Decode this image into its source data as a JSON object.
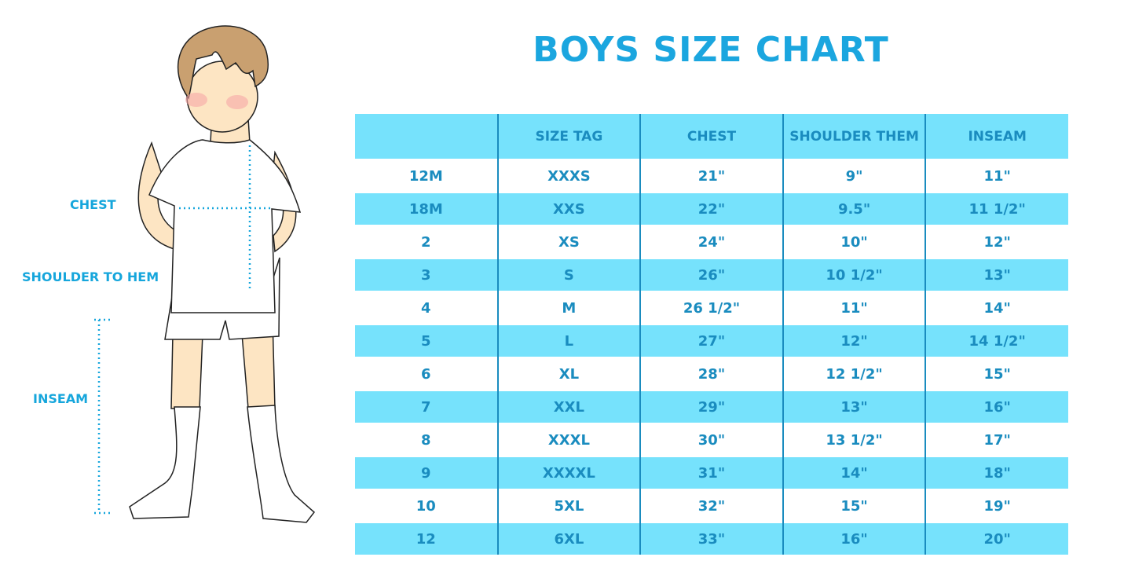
{
  "title": "BOYS SIZE CHART",
  "diagram_labels": {
    "chest": "CHEST",
    "shoulder_to_hem": "SHOULDER TO HEM",
    "inseam": "INSEAM"
  },
  "table": {
    "headers": [
      "",
      "SIZE TAG",
      "CHEST",
      "SHOULDER THEM",
      "INSEAM"
    ],
    "rows": [
      [
        "12M",
        "XXXS",
        "21\"",
        "9\"",
        "11\""
      ],
      [
        "18M",
        "XXS",
        "22\"",
        "9.5\"",
        "11 1/2\""
      ],
      [
        "2",
        "XS",
        "24\"",
        "10\"",
        "12\""
      ],
      [
        "3",
        "S",
        "26\"",
        "10 1/2\"",
        "13\""
      ],
      [
        "4",
        "M",
        "26 1/2\"",
        "11\"",
        "14\""
      ],
      [
        "5",
        "L",
        "27\"",
        "12\"",
        "14 1/2\""
      ],
      [
        "6",
        "XL",
        "28\"",
        "12 1/2\"",
        "15\""
      ],
      [
        "7",
        "XXL",
        "29\"",
        "13\"",
        "16\""
      ],
      [
        "8",
        "XXXL",
        "30\"",
        "13 1/2\"",
        "17\""
      ],
      [
        "9",
        "XXXXL",
        "31\"",
        "14\"",
        "18\""
      ],
      [
        "10",
        "5XL",
        "32\"",
        "15\"",
        "19\""
      ],
      [
        "12",
        "6XL",
        "33\"",
        "16\"",
        "20\""
      ]
    ]
  },
  "colors": {
    "accent": "#1ba6df",
    "header_fill": "#76e2fc",
    "text": "#1a8cbf"
  }
}
